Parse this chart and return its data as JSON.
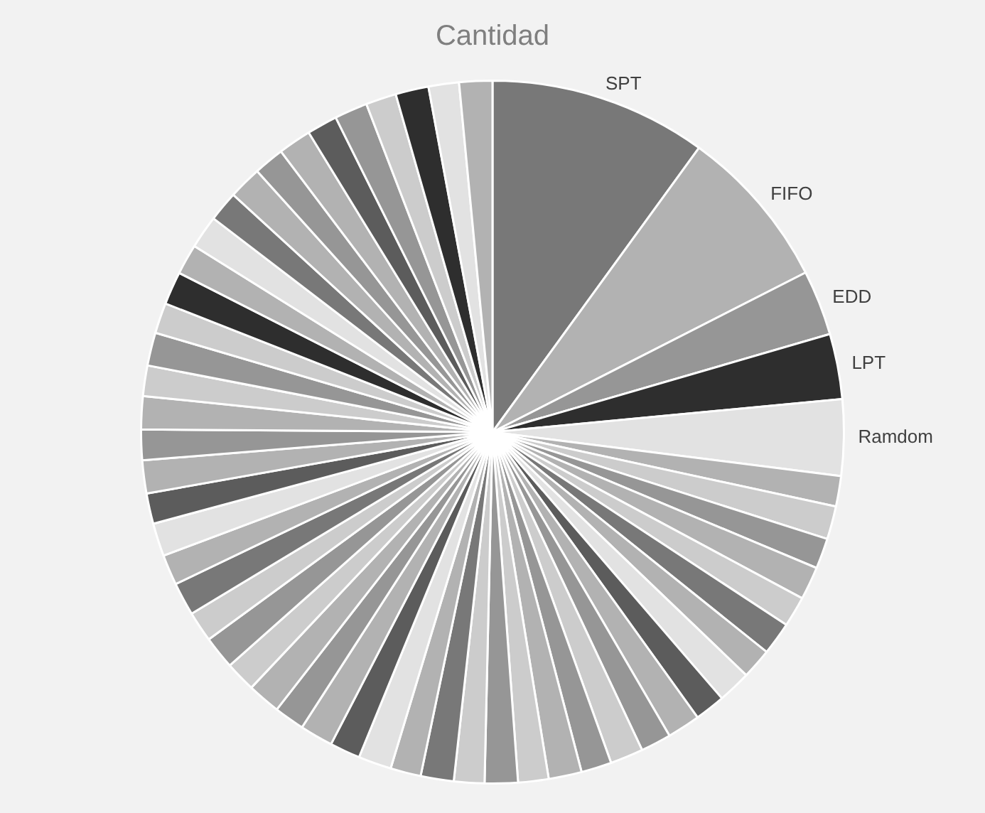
{
  "chart_data": {
    "type": "pie",
    "title": "Cantidad",
    "categories": [
      "SPT",
      "FIFO",
      "EDD",
      "LPT",
      "Ramdom",
      null,
      null,
      null,
      null,
      null,
      null,
      null,
      null,
      null,
      null,
      null,
      null,
      null,
      null,
      null,
      null,
      null,
      null,
      null,
      null,
      null,
      null,
      null,
      null,
      null,
      null,
      null,
      null,
      null,
      null,
      null,
      null,
      null,
      null,
      null,
      null,
      null,
      null,
      null,
      null,
      null,
      null,
      null,
      null,
      null,
      null,
      null,
      null,
      null,
      null
    ],
    "values": [
      10,
      7.5,
      3,
      3,
      3.5,
      1.4,
      1.52,
      1.4,
      1.52,
      1.4,
      1.52,
      1.4,
      1.52,
      1.4,
      1.52,
      1.4,
      1.52,
      1.4,
      1.52,
      1.4,
      1.52,
      1.4,
      1.52,
      1.4,
      1.52,
      1.4,
      1.52,
      1.4,
      1.52,
      1.4,
      1.52,
      1.4,
      1.52,
      1.4,
      1.52,
      1.4,
      1.52,
      1.4,
      1.52,
      1.4,
      1.52,
      1.4,
      1.52,
      1.4,
      1.52,
      1.4,
      1.52,
      1.4,
      1.52,
      1.4,
      1.52,
      1.4,
      1.52,
      1.4,
      1.52
    ],
    "colors": [
      "#787878",
      "#b2b2b2",
      "#969696",
      "#2e2e2e",
      "#e2e2e2",
      "#b2b2b2",
      "#cccccc",
      "#969696",
      "#b2b2b2",
      "#cccccc",
      "#787878",
      "#b2b2b2",
      "#e2e2e2",
      "#5c5c5c",
      "#b2b2b2",
      "#969696",
      "#cccccc",
      "#969696",
      "#b2b2b2",
      "#cccccc",
      "#969696",
      "#cccccc",
      "#787878",
      "#b2b2b2",
      "#e2e2e2",
      "#5c5c5c",
      "#b2b2b2",
      "#969696",
      "#b2b2b2",
      "#cccccc",
      "#969696",
      "#cccccc",
      "#787878",
      "#b2b2b2",
      "#e2e2e2",
      "#5c5c5c",
      "#b2b2b2",
      "#969696",
      "#b2b2b2",
      "#cccccc",
      "#969696",
      "#cccccc",
      "#2e2e2e",
      "#b2b2b2",
      "#e2e2e2",
      "#787878",
      "#b2b2b2",
      "#969696",
      "#b2b2b2",
      "#5c5c5c",
      "#969696",
      "#cccccc",
      "#2e2e2e",
      "#e2e2e2",
      "#b2b2b2"
    ]
  }
}
